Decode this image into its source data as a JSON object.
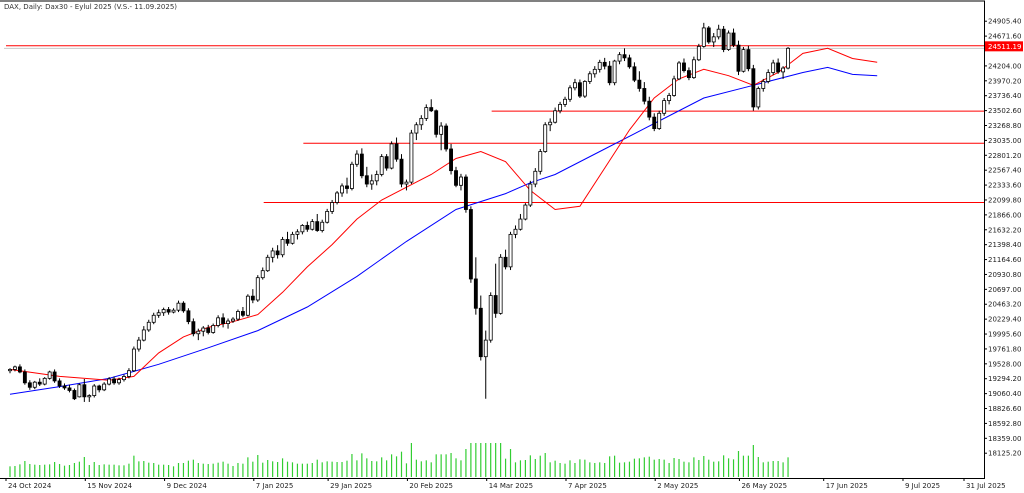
{
  "chart_data": {
    "type": "candlestick",
    "title": "DAX, Daily:  Dax30 - Eylul 2025 (V.S.- 11.09.2025)",
    "current_price_label": "24511.19",
    "y_ticks": [
      "24905.40",
      "24671.60",
      "24204.00",
      "23970.20",
      "23736.40",
      "23502.60",
      "23268.80",
      "23035.00",
      "22801.20",
      "22567.40",
      "22333.60",
      "22099.80",
      "21866.00",
      "21632.20",
      "21398.40",
      "21164.60",
      "20930.80",
      "20697.00",
      "20463.20",
      "20229.40",
      "19995.60",
      "19761.80",
      "19528.00",
      "19294.20",
      "19060.40",
      "18826.60",
      "18592.80",
      "18359.00",
      "18125.20"
    ],
    "ylim": [
      18050,
      25050
    ],
    "x_labels": [
      "24 Oct 2024",
      "15 Nov 2024",
      "9 Dec 2024",
      "7 Jan 2025",
      "29 Jan 2025",
      "20 Feb 2025",
      "14 Mar 2025",
      "7 Apr 2025",
      "2 May 2025",
      "26 May 2025",
      "17 Jun 2025",
      "9 Jul 2025",
      "31 Jul 2025"
    ],
    "horizontal_levels": [
      24520,
      23495,
      22990,
      22060
    ],
    "colors": {
      "up_fill": "#ffffff",
      "down_fill": "#000000",
      "candle_stroke": "#000000",
      "ma_fast": "#ff0000",
      "ma_slow": "#0000ff",
      "level": "#ff0000",
      "volume": "#32cd32"
    },
    "grid": false,
    "candles": [
      [
        19420,
        19460,
        19380,
        19440
      ],
      [
        19440,
        19500,
        19410,
        19480
      ],
      [
        19480,
        19520,
        19380,
        19400
      ],
      [
        19400,
        19440,
        19200,
        19230
      ],
      [
        19230,
        19270,
        19120,
        19160
      ],
      [
        19160,
        19260,
        19130,
        19240
      ],
      [
        19240,
        19300,
        19180,
        19210
      ],
      [
        19210,
        19320,
        19190,
        19300
      ],
      [
        19300,
        19420,
        19280,
        19400
      ],
      [
        19400,
        19440,
        19230,
        19260
      ],
      [
        19260,
        19300,
        19150,
        19180
      ],
      [
        19180,
        19220,
        19120,
        19150
      ],
      [
        19150,
        19200,
        19080,
        19110
      ],
      [
        19110,
        19140,
        18960,
        18980
      ],
      [
        19010,
        19220,
        19000,
        19200
      ],
      [
        19200,
        19290,
        18930,
        19010
      ],
      [
        19010,
        19050,
        18930,
        19030
      ],
      [
        19030,
        19210,
        19000,
        19180
      ],
      [
        19180,
        19200,
        19080,
        19120
      ],
      [
        19120,
        19240,
        19100,
        19210
      ],
      [
        19210,
        19320,
        19190,
        19290
      ],
      [
        19290,
        19330,
        19200,
        19230
      ],
      [
        19230,
        19310,
        19200,
        19280
      ],
      [
        19280,
        19360,
        19250,
        19330
      ],
      [
        19330,
        19460,
        19300,
        19420
      ],
      [
        19420,
        19800,
        19400,
        19760
      ],
      [
        19760,
        19950,
        19720,
        19900
      ],
      [
        19900,
        20120,
        19880,
        20060
      ],
      [
        20060,
        20220,
        20030,
        20180
      ],
      [
        20180,
        20330,
        20150,
        20290
      ],
      [
        20290,
        20380,
        20250,
        20330
      ],
      [
        20330,
        20410,
        20280,
        20380
      ],
      [
        20380,
        20420,
        20300,
        20340
      ],
      [
        20340,
        20400,
        20320,
        20370
      ],
      [
        20370,
        20520,
        20340,
        20480
      ],
      [
        20480,
        20510,
        20330,
        20360
      ],
      [
        20360,
        20400,
        20150,
        20190
      ],
      [
        20190,
        20240,
        19960,
        20000
      ],
      [
        20000,
        20080,
        19900,
        20040
      ],
      [
        20040,
        20120,
        19960,
        20090
      ],
      [
        20090,
        20140,
        19990,
        20020
      ],
      [
        20020,
        20160,
        20000,
        20130
      ],
      [
        20130,
        20290,
        20100,
        20250
      ],
      [
        20250,
        20320,
        20100,
        20160
      ],
      [
        20160,
        20240,
        20080,
        20200
      ],
      [
        20200,
        20260,
        20170,
        20230
      ],
      [
        20230,
        20380,
        20200,
        20350
      ],
      [
        20350,
        20420,
        20260,
        20290
      ],
      [
        20290,
        20620,
        20270,
        20590
      ],
      [
        20590,
        20700,
        20480,
        20530
      ],
      [
        20530,
        20920,
        20500,
        20880
      ],
      [
        20880,
        21040,
        20850,
        20990
      ],
      [
        20990,
        21240,
        20970,
        21200
      ],
      [
        21200,
        21350,
        21120,
        21300
      ],
      [
        21300,
        21390,
        21180,
        21240
      ],
      [
        21240,
        21520,
        21200,
        21480
      ],
      [
        21480,
        21600,
        21380,
        21420
      ],
      [
        21420,
        21600,
        21400,
        21560
      ],
      [
        21560,
        21640,
        21480,
        21600
      ],
      [
        21600,
        21720,
        21560,
        21700
      ],
      [
        21700,
        21760,
        21600,
        21640
      ],
      [
        21640,
        21800,
        21620,
        21760
      ],
      [
        21760,
        21880,
        21600,
        21620
      ],
      [
        21620,
        21790,
        21590,
        21750
      ],
      [
        21750,
        21960,
        21730,
        21920
      ],
      [
        21920,
        22100,
        21880,
        22060
      ],
      [
        22060,
        22240,
        22030,
        22210
      ],
      [
        22210,
        22360,
        22150,
        22320
      ],
      [
        22320,
        22450,
        22200,
        22280
      ],
      [
        22280,
        22700,
        22250,
        22660
      ],
      [
        22660,
        22880,
        22620,
        22820
      ],
      [
        22820,
        22910,
        22440,
        22480
      ],
      [
        22480,
        22620,
        22300,
        22350
      ],
      [
        22350,
        22500,
        22260,
        22400
      ],
      [
        22400,
        22560,
        22330,
        22500
      ],
      [
        22500,
        22820,
        22470,
        22780
      ],
      [
        22780,
        22820,
        22560,
        22600
      ],
      [
        22600,
        23020,
        22580,
        22980
      ],
      [
        22980,
        23080,
        22700,
        22740
      ],
      [
        22740,
        22820,
        22300,
        22350
      ],
      [
        22350,
        22420,
        22250,
        22380
      ],
      [
        22380,
        23200,
        22350,
        23150
      ],
      [
        23150,
        23320,
        23040,
        23280
      ],
      [
        23280,
        23430,
        23200,
        23380
      ],
      [
        23380,
        23600,
        23340,
        23550
      ],
      [
        23550,
        23680,
        23480,
        23500
      ],
      [
        23500,
        23520,
        23080,
        23130
      ],
      [
        23130,
        23320,
        22880,
        23260
      ],
      [
        23260,
        23300,
        22860,
        22900
      ],
      [
        22900,
        22980,
        22500,
        22560
      ],
      [
        22560,
        22620,
        22300,
        22330
      ],
      [
        22330,
        22510,
        22250,
        22460
      ],
      [
        22460,
        22500,
        21900,
        21950
      ],
      [
        21950,
        22000,
        20800,
        20860
      ],
      [
        20860,
        21200,
        20300,
        20400
      ],
      [
        20400,
        20600,
        19580,
        19640
      ],
      [
        19640,
        20050,
        18980,
        19900
      ],
      [
        19900,
        20650,
        19860,
        20600
      ],
      [
        20600,
        21100,
        20250,
        20320
      ],
      [
        20320,
        21250,
        20300,
        21200
      ],
      [
        21200,
        21320,
        21010,
        21050
      ],
      [
        21050,
        21600,
        21000,
        21560
      ],
      [
        21560,
        21700,
        21500,
        21640
      ],
      [
        21640,
        21880,
        21620,
        21800
      ],
      [
        21800,
        22050,
        21780,
        22020
      ],
      [
        22020,
        22400,
        21990,
        22350
      ],
      [
        22350,
        22600,
        22300,
        22550
      ],
      [
        22550,
        22900,
        22500,
        22860
      ],
      [
        22860,
        23320,
        22840,
        23280
      ],
      [
        23280,
        23380,
        23180,
        23320
      ],
      [
        23320,
        23550,
        23300,
        23500
      ],
      [
        23500,
        23640,
        23460,
        23600
      ],
      [
        23600,
        23720,
        23560,
        23680
      ],
      [
        23680,
        23900,
        23640,
        23860
      ],
      [
        23860,
        24000,
        23820,
        23940
      ],
      [
        23940,
        23990,
        23700,
        23730
      ],
      [
        23730,
        23980,
        23700,
        23960
      ],
      [
        23960,
        24120,
        23920,
        24080
      ],
      [
        24080,
        24200,
        24020,
        24150
      ],
      [
        24150,
        24300,
        24100,
        24260
      ],
      [
        24260,
        24330,
        24150,
        24200
      ],
      [
        24200,
        24280,
        23900,
        23940
      ],
      [
        23940,
        24300,
        23900,
        24280
      ],
      [
        24280,
        24420,
        24230,
        24380
      ],
      [
        24380,
        24480,
        24280,
        24330
      ],
      [
        24330,
        24380,
        24160,
        24190
      ],
      [
        24190,
        24260,
        23950,
        23980
      ],
      [
        23980,
        24120,
        23800,
        23850
      ],
      [
        23850,
        23950,
        23600,
        23650
      ],
      [
        23650,
        23720,
        23350,
        23400
      ],
      [
        23400,
        23460,
        23180,
        23220
      ],
      [
        23220,
        23500,
        23200,
        23460
      ],
      [
        23460,
        23700,
        23420,
        23660
      ],
      [
        23660,
        23780,
        23600,
        23740
      ],
      [
        23740,
        24050,
        23720,
        24000
      ],
      [
        24000,
        24280,
        23980,
        24250
      ],
      [
        24250,
        24320,
        24100,
        24130
      ],
      [
        24130,
        24180,
        23980,
        24020
      ],
      [
        24020,
        24350,
        24000,
        24300
      ],
      [
        24300,
        24550,
        24280,
        24510
      ],
      [
        24510,
        24880,
        24490,
        24800
      ],
      [
        24800,
        24830,
        24550,
        24580
      ],
      [
        24580,
        24720,
        24500,
        24660
      ],
      [
        24660,
        24850,
        24620,
        24780
      ],
      [
        24780,
        24830,
        24420,
        24460
      ],
      [
        24460,
        24760,
        24440,
        24720
      ],
      [
        24720,
        24790,
        24500,
        24530
      ],
      [
        24530,
        24600,
        24060,
        24120
      ],
      [
        24120,
        24500,
        24100,
        24460
      ],
      [
        24460,
        24520,
        24120,
        24160
      ],
      [
        24160,
        24220,
        23500,
        23560
      ],
      [
        23560,
        23880,
        23520,
        23850
      ],
      [
        23850,
        24000,
        23800,
        23960
      ],
      [
        23960,
        24150,
        23930,
        24100
      ],
      [
        24100,
        24300,
        24060,
        24250
      ],
      [
        24250,
        24320,
        24080,
        24110
      ],
      [
        24110,
        24200,
        24000,
        24170
      ],
      [
        24170,
        24500,
        24150,
        24480
      ]
    ],
    "ma_fast": [
      [
        0,
        19440
      ],
      [
        10,
        19330
      ],
      [
        20,
        19270
      ],
      [
        25,
        19330
      ],
      [
        30,
        19700
      ],
      [
        35,
        19950
      ],
      [
        40,
        20100
      ],
      [
        45,
        20190
      ],
      [
        50,
        20300
      ],
      [
        55,
        20650
      ],
      [
        60,
        21050
      ],
      [
        65,
        21400
      ],
      [
        70,
        21800
      ],
      [
        75,
        22100
      ],
      [
        80,
        22300
      ],
      [
        85,
        22500
      ],
      [
        90,
        22750
      ],
      [
        95,
        22860
      ],
      [
        100,
        22700
      ],
      [
        105,
        22250
      ],
      [
        110,
        21950
      ],
      [
        115,
        22000
      ],
      [
        120,
        22600
      ],
      [
        125,
        23200
      ],
      [
        130,
        23700
      ],
      [
        135,
        24000
      ],
      [
        140,
        24150
      ],
      [
        145,
        24050
      ],
      [
        150,
        23900
      ],
      [
        155,
        24100
      ],
      [
        160,
        24400
      ],
      [
        165,
        24480
      ],
      [
        170,
        24320
      ],
      [
        175,
        24260
      ]
    ],
    "ma_slow": [
      [
        0,
        19050
      ],
      [
        10,
        19170
      ],
      [
        20,
        19300
      ],
      [
        30,
        19520
      ],
      [
        40,
        19780
      ],
      [
        50,
        20050
      ],
      [
        60,
        20420
      ],
      [
        70,
        20900
      ],
      [
        80,
        21450
      ],
      [
        90,
        21950
      ],
      [
        100,
        22200
      ],
      [
        105,
        22370
      ],
      [
        110,
        22500
      ],
      [
        120,
        22900
      ],
      [
        130,
        23300
      ],
      [
        140,
        23700
      ],
      [
        150,
        23900
      ],
      [
        160,
        24100
      ],
      [
        165,
        24180
      ],
      [
        170,
        24070
      ],
      [
        175,
        24050
      ]
    ]
  }
}
